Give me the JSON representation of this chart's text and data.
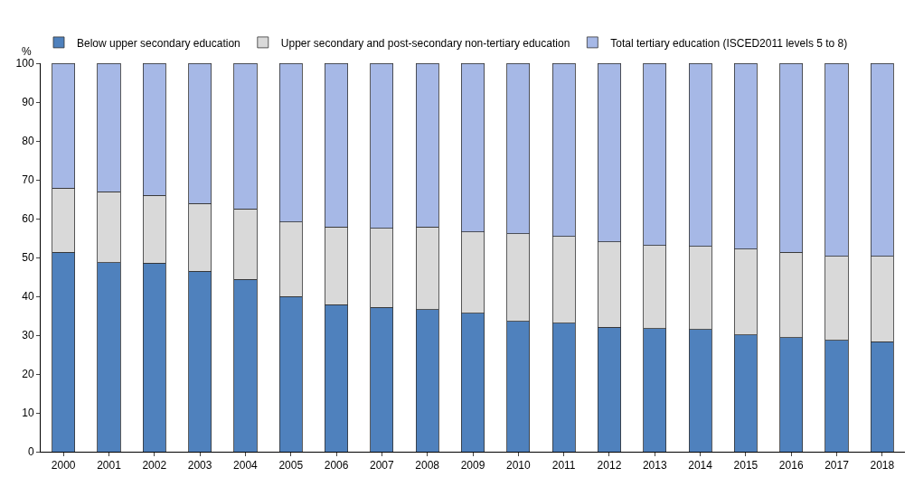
{
  "chart_data": {
    "type": "bar",
    "stacked": true,
    "ylabel": "%",
    "legend": "top",
    "grid": false,
    "categories": [
      "2000",
      "2001",
      "2002",
      "2003",
      "2004",
      "2005",
      "2006",
      "2007",
      "2008",
      "2009",
      "2010",
      "2011",
      "2012",
      "2013",
      "2014",
      "2015",
      "2016",
      "2017",
      "2018"
    ],
    "series": [
      {
        "name": "Below upper secondary education",
        "color": "#4f81bd",
        "values": [
          51.3,
          48.7,
          48.5,
          46.4,
          44.4,
          40.0,
          37.9,
          37.2,
          36.6,
          35.6,
          33.6,
          33.1,
          32.0,
          31.7,
          31.5,
          30.1,
          29.4,
          28.7,
          28.3
        ]
      },
      {
        "name": "Upper secondary and post-secondary non-tertiary education",
        "color": "#d9d9d9",
        "values": [
          16.5,
          18.2,
          17.5,
          17.5,
          18.1,
          19.1,
          20.0,
          20.3,
          21.3,
          21.0,
          22.5,
          22.3,
          22.0,
          21.4,
          21.4,
          22.1,
          21.9,
          21.6,
          22.0
        ]
      },
      {
        "name": "Total tertiary education (ISCED2011 levels 5 to 8)",
        "color": "#a6b8e6",
        "values": [
          32.2,
          33.1,
          34.0,
          36.1,
          37.5,
          40.9,
          42.1,
          42.5,
          42.1,
          43.4,
          43.9,
          44.6,
          46.0,
          46.9,
          47.1,
          47.8,
          48.7,
          49.7,
          49.7
        ]
      }
    ],
    "ylim": [
      0,
      100
    ],
    "yticks": [
      0,
      10,
      20,
      30,
      40,
      50,
      60,
      70,
      80,
      90,
      100
    ]
  }
}
